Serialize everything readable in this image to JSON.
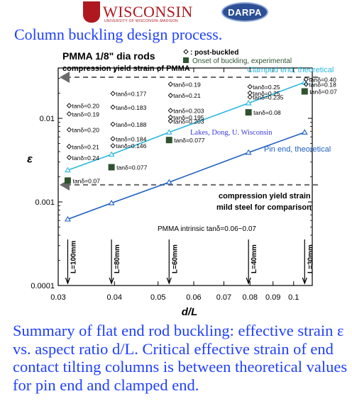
{
  "logos": {
    "wisconsin": {
      "text": "WISCONSIN",
      "subtext": "UNIVERSITY OF WISCONSIN–MADISON"
    },
    "darpa": {
      "text": "DARPA"
    }
  },
  "slide": {
    "title": "Column buckling design process.",
    "summary": "Summary of flat end rod buckling: effective strain ε vs. aspect ratio d/L.  Critical effective strain of end contact tilting columns is between theoretical values for pin end and clamped end."
  },
  "chart_data": {
    "type": "scatter",
    "title": "PMMA 1/8\" dia rods",
    "xlabel": "d/L",
    "ylabel": "ε",
    "x_scale": "log",
    "y_scale": "log",
    "xlim": [
      0.03,
      0.11
    ],
    "ylim": [
      0.0001,
      0.04
    ],
    "x_ticks": [
      {
        "value": 0.03,
        "label": "0.03"
      },
      {
        "value": 0.04,
        "label": "0.04"
      },
      {
        "value": 0.05,
        "label": "0.05"
      },
      {
        "value": 0.06,
        "label": "0.06"
      },
      {
        "value": 0.07,
        "label": "0.07"
      },
      {
        "value": 0.08,
        "label": "0.08"
      },
      {
        "value": 0.09,
        "label": "0.09"
      },
      {
        "value": 0.1,
        "label": "0.1"
      }
    ],
    "y_ticks": [
      {
        "value": 0.0001,
        "label": "0.0001"
      },
      {
        "value": 0.001,
        "label": "0.001"
      },
      {
        "value": 0.01,
        "label": "0.01"
      }
    ],
    "legend": [
      {
        "marker": "diamond-open",
        "label": ": post-buckled"
      },
      {
        "marker": "square-filled",
        "label": "Onset of buckling, experimental"
      }
    ],
    "series": [
      {
        "name": "Clamped end, theoretical",
        "color": "#2ab8e0",
        "marker": "triangle-open",
        "points": [
          [
            0.0315,
            0.0024
          ],
          [
            0.0394,
            0.0037
          ],
          [
            0.0529,
            0.0068
          ],
          [
            0.0794,
            0.0152
          ],
          [
            0.1058,
            0.027
          ]
        ]
      },
      {
        "name": "Pin end, theoretical",
        "color": "#1d5fc2",
        "marker": "triangle-open",
        "points": [
          [
            0.0315,
            0.00062
          ],
          [
            0.0394,
            0.00097
          ],
          [
            0.0529,
            0.00172
          ],
          [
            0.0794,
            0.0039
          ],
          [
            0.1058,
            0.0068
          ]
        ]
      }
    ],
    "onset": [
      [
        0.0315,
        0.0018
      ],
      [
        0.0394,
        0.0026
      ],
      [
        0.0529,
        0.0055
      ],
      [
        0.0794,
        0.0118
      ],
      [
        0.1058,
        0.021
      ]
    ],
    "post_buckled": [
      {
        "x": 0.0315,
        "y": 0.0142,
        "label": "tanδ=0.20"
      },
      {
        "x": 0.0315,
        "y": 0.0113,
        "label": "tanδ=0.19"
      },
      {
        "x": 0.0315,
        "y": 0.0073,
        "label": "tanδ=0.20"
      },
      {
        "x": 0.0315,
        "y": 0.0046,
        "label": "tanδ=0.21"
      },
      {
        "x": 0.0315,
        "y": 0.0034,
        "label": "tanδ=0.24"
      },
      {
        "x": 0.0394,
        "y": 0.0198,
        "label": "tanδ=0.177"
      },
      {
        "x": 0.0394,
        "y": 0.0136,
        "label": "tanδ=0.183"
      },
      {
        "x": 0.0394,
        "y": 0.0085,
        "label": "tanδ=0.188"
      },
      {
        "x": 0.0394,
        "y": 0.0057,
        "label": "tanδ=0.184"
      },
      {
        "x": 0.0394,
        "y": 0.0047,
        "label": "tanδ=0.146"
      },
      {
        "x": 0.0529,
        "y": 0.0256,
        "label": "tanδ=0.19"
      },
      {
        "x": 0.0529,
        "y": 0.0188,
        "label": "tanδ=0.21"
      },
      {
        "x": 0.0529,
        "y": 0.0124,
        "label": "tanδ=0.203"
      },
      {
        "x": 0.0529,
        "y": 0.0103,
        "label": "tanδ=0.195"
      },
      {
        "x": 0.0529,
        "y": 0.0093,
        "label": "tanδ=0.203"
      },
      {
        "x": 0.0794,
        "y": 0.0239,
        "label": "tanδ=0.25"
      },
      {
        "x": 0.0794,
        "y": 0.0201,
        "label": "tanδ=0.25"
      },
      {
        "x": 0.0794,
        "y": 0.018,
        "label": "tanδ=0.235"
      },
      {
        "x": 0.1058,
        "y": 0.0293,
        "label": "tanδ=0.40"
      },
      {
        "x": 0.1058,
        "y": 0.0256,
        "label": "tanδ=0.18"
      }
    ],
    "onset_labels": [
      {
        "x": 0.0315,
        "y": 0.0018,
        "label": "tanδ=0.07"
      },
      {
        "x": 0.0394,
        "y": 0.0026,
        "label": "tanδ=0.077"
      },
      {
        "x": 0.0529,
        "y": 0.0055,
        "label": "tanδ=0.077"
      },
      {
        "x": 0.0794,
        "y": 0.0118,
        "label": "tanδ=0.08"
      },
      {
        "x": 0.1058,
        "y": 0.021,
        "label": "tanδ=0.07"
      }
    ],
    "reference_lines": [
      {
        "y": 0.031,
        "label": "compression yield strain of PMMA"
      },
      {
        "y": 0.0016,
        "label": "compression yield strain",
        "label2": "mild steel for comparison"
      }
    ],
    "length_markers": [
      {
        "x": 0.0315,
        "label": "L=100mm"
      },
      {
        "x": 0.0394,
        "label": "L=80mm"
      },
      {
        "x": 0.0529,
        "label": "L=60mm"
      },
      {
        "x": 0.0794,
        "label": "L=40mm"
      },
      {
        "x": 0.1058,
        "label": "L=30mm"
      }
    ],
    "annotations": {
      "credit": "Lakes, Dong, U. Wisconsin",
      "intrinsic": "PMMA intrinsic tanδ=0.06~0.07"
    },
    "colors": {
      "clamped": "#2ab8e0",
      "pin": "#1d5fc2",
      "onset": "#2f5230",
      "reference": "#6a6a6a",
      "credit": "#3a3ad8"
    }
  }
}
